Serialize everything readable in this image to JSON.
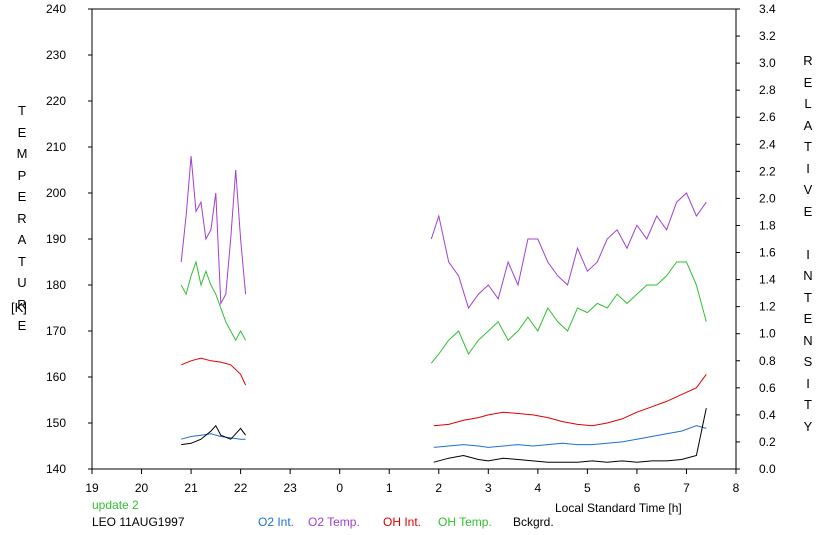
{
  "chart_data": {
    "type": "line",
    "left_axis_label": "TEMPERATURE",
    "left_axis_unit": "[K]",
    "right_axis_label": "RELATIVE INTENSITY",
    "xlabel": "Local Standard Time [h]",
    "x_ticks": [
      "19",
      "20",
      "21",
      "22",
      "23",
      "0",
      "1",
      "2",
      "3",
      "4",
      "5",
      "6",
      "7",
      "8"
    ],
    "xlim": [
      19,
      32
    ],
    "ylim_left": [
      140,
      240
    ],
    "ylim_right": [
      0.0,
      3.4
    ],
    "y_ticks_left": [
      "140",
      "150",
      "160",
      "170",
      "180",
      "190",
      "200",
      "210",
      "220",
      "230",
      "240"
    ],
    "y_ticks_right": [
      "0.0",
      "0.2",
      "0.4",
      "0.6",
      "0.8",
      "1.0",
      "1.2",
      "1.4",
      "1.6",
      "1.8",
      "2.0",
      "2.2",
      "2.4",
      "2.6",
      "2.8",
      "3.0",
      "3.2",
      "3.4"
    ],
    "status_text": "update 2",
    "station_date": "LEO 11AUG1997",
    "legend": [
      {
        "label": "O2 Int.",
        "color": "#1f6fd0"
      },
      {
        "label": "O2 Temp.",
        "color": "#a040d0"
      },
      {
        "label": "OH Int.",
        "color": "#e00000"
      },
      {
        "label": "OH Temp.",
        "color": "#30c030"
      },
      {
        "label": "Bckgrd.",
        "color": "#000000"
      }
    ],
    "series": [
      {
        "name": "O2 Temp.",
        "axis": "left",
        "color": "#a040d0",
        "x": [
          20.8,
          20.9,
          21.0,
          21.1,
          21.2,
          21.3,
          21.4,
          21.5,
          21.6,
          21.7,
          21.8,
          21.9,
          22.0,
          22.1,
          null,
          25.85,
          26.0,
          26.2,
          26.4,
          26.6,
          26.8,
          27.0,
          27.2,
          27.4,
          27.6,
          27.8,
          28.0,
          28.2,
          28.4,
          28.6,
          28.8,
          29.0,
          29.2,
          29.4,
          29.6,
          29.8,
          30.0,
          30.2,
          30.4,
          30.6,
          30.8,
          31.0,
          31.2,
          31.4
        ],
        "y": [
          185,
          195,
          208,
          196,
          198,
          190,
          192,
          200,
          176,
          178,
          190,
          205,
          190,
          178,
          null,
          190,
          195,
          185,
          182,
          175,
          178,
          180,
          177,
          185,
          180,
          190,
          190,
          185,
          182,
          180,
          188,
          183,
          185,
          190,
          192,
          188,
          193,
          190,
          195,
          192,
          198,
          200,
          195,
          198
        ]
      },
      {
        "name": "OH Temp.",
        "axis": "left",
        "color": "#30c030",
        "x": [
          20.8,
          20.9,
          21.0,
          21.1,
          21.2,
          21.3,
          21.4,
          21.5,
          21.6,
          21.7,
          21.8,
          21.9,
          22.0,
          22.1,
          null,
          25.85,
          26.0,
          26.2,
          26.4,
          26.6,
          26.8,
          27.0,
          27.2,
          27.4,
          27.6,
          27.8,
          28.0,
          28.2,
          28.4,
          28.6,
          28.8,
          29.0,
          29.2,
          29.4,
          29.6,
          29.8,
          30.0,
          30.2,
          30.4,
          30.6,
          30.8,
          31.0,
          31.2,
          31.4
        ],
        "y": [
          180,
          178,
          182,
          185,
          180,
          183,
          180,
          178,
          175,
          172,
          170,
          168,
          170,
          168,
          null,
          163,
          165,
          168,
          170,
          165,
          168,
          170,
          172,
          168,
          170,
          173,
          170,
          175,
          172,
          170,
          175,
          174,
          176,
          175,
          178,
          176,
          178,
          180,
          180,
          182,
          185,
          185,
          180,
          172
        ]
      },
      {
        "name": "OH Int.",
        "axis": "right",
        "color": "#e00000",
        "x": [
          20.8,
          21.0,
          21.2,
          21.4,
          21.6,
          21.8,
          22.0,
          22.1,
          null,
          25.9,
          26.2,
          26.5,
          26.8,
          27.0,
          27.3,
          27.6,
          27.9,
          28.2,
          28.5,
          28.8,
          29.1,
          29.4,
          29.7,
          30.0,
          30.3,
          30.6,
          30.9,
          31.2,
          31.4
        ],
        "y": [
          0.77,
          0.8,
          0.82,
          0.8,
          0.79,
          0.77,
          0.7,
          0.62,
          null,
          0.32,
          0.33,
          0.36,
          0.38,
          0.4,
          0.42,
          0.41,
          0.4,
          0.38,
          0.35,
          0.33,
          0.32,
          0.34,
          0.37,
          0.42,
          0.46,
          0.5,
          0.55,
          0.6,
          0.7
        ]
      },
      {
        "name": "O2 Int.",
        "axis": "right",
        "color": "#1f6fd0",
        "x": [
          20.8,
          21.0,
          21.2,
          21.4,
          21.6,
          21.8,
          22.0,
          22.1,
          null,
          25.9,
          26.2,
          26.5,
          26.8,
          27.0,
          27.3,
          27.6,
          27.9,
          28.2,
          28.5,
          28.8,
          29.1,
          29.4,
          29.7,
          30.0,
          30.3,
          30.6,
          30.9,
          31.2,
          31.4
        ],
        "y": [
          0.22,
          0.24,
          0.25,
          0.26,
          0.24,
          0.23,
          0.22,
          0.22,
          null,
          0.16,
          0.17,
          0.18,
          0.17,
          0.16,
          0.17,
          0.18,
          0.17,
          0.18,
          0.19,
          0.18,
          0.18,
          0.19,
          0.2,
          0.22,
          0.24,
          0.26,
          0.28,
          0.32,
          0.3
        ]
      },
      {
        "name": "Bckgrd.",
        "axis": "right",
        "color": "#000000",
        "x": [
          20.8,
          21.0,
          21.2,
          21.4,
          21.5,
          21.6,
          21.8,
          21.9,
          22.0,
          22.1,
          null,
          25.9,
          26.2,
          26.5,
          26.8,
          27.0,
          27.3,
          27.6,
          27.9,
          28.2,
          28.5,
          28.8,
          29.1,
          29.4,
          29.7,
          30.0,
          30.3,
          30.6,
          30.9,
          31.2,
          31.4
        ],
        "y": [
          0.18,
          0.19,
          0.22,
          0.28,
          0.32,
          0.25,
          0.22,
          0.26,
          0.3,
          0.25,
          null,
          0.05,
          0.08,
          0.1,
          0.07,
          0.06,
          0.08,
          0.07,
          0.06,
          0.05,
          0.05,
          0.05,
          0.06,
          0.05,
          0.06,
          0.05,
          0.06,
          0.06,
          0.07,
          0.1,
          0.45
        ]
      }
    ]
  }
}
